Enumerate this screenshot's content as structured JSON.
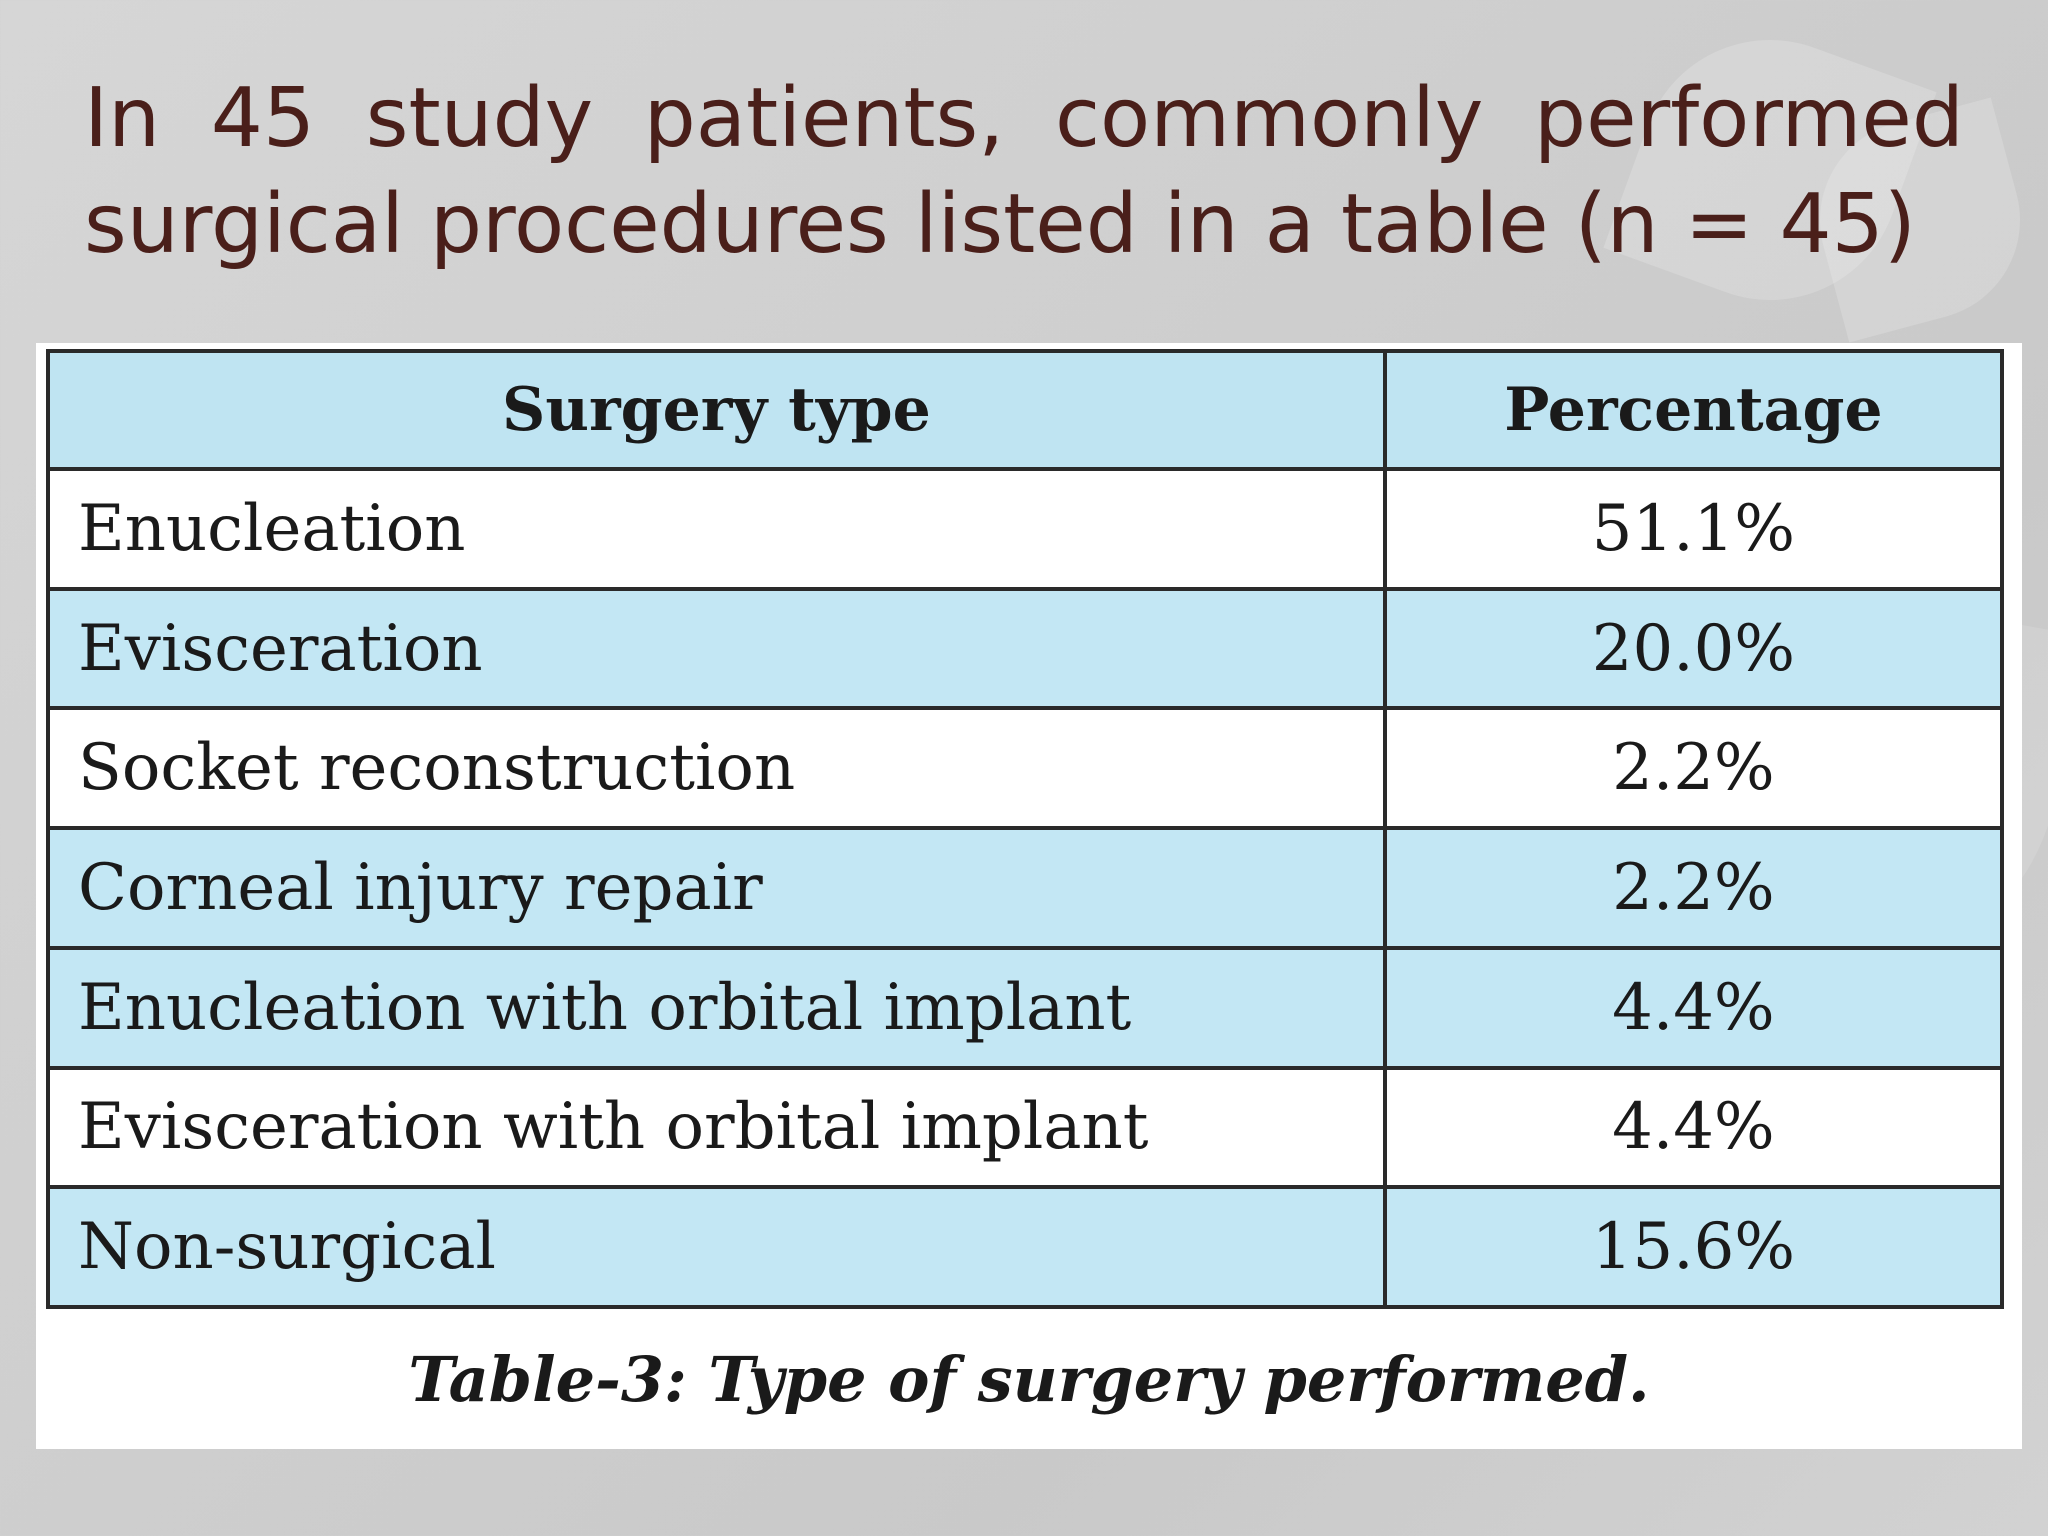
{
  "slide": {
    "title_line1_words": [
      "In",
      "45",
      "study",
      "patients,",
      "commonly",
      "performed"
    ],
    "title_line2": "surgical procedures listed in a table (n = 45)"
  },
  "table": {
    "headers": {
      "type": "Surgery type",
      "percentage": "Percentage"
    },
    "rows": [
      {
        "type": "Enucleation",
        "percentage": "51.1%"
      },
      {
        "type": "Evisceration",
        "percentage": "20.0%"
      },
      {
        "type": "Socket reconstruction",
        "percentage": "2.2%"
      },
      {
        "type": "Corneal injury repair",
        "percentage": "2.2%"
      },
      {
        "type": "Enucleation with orbital implant",
        "percentage": "4.4%"
      },
      {
        "type": "Evisceration with orbital implant",
        "percentage": "4.4%"
      },
      {
        "type": "Non-surgical",
        "percentage": "15.6%"
      }
    ],
    "caption": "Table-3: Type of surgery performed."
  },
  "colors": {
    "title_text": "#4a1f1a",
    "header_fill": "#bfe4f2",
    "shaded_row_fill": "#c3e7f4",
    "plain_row_fill": "#ffffff",
    "border": "#2a2a2a"
  }
}
